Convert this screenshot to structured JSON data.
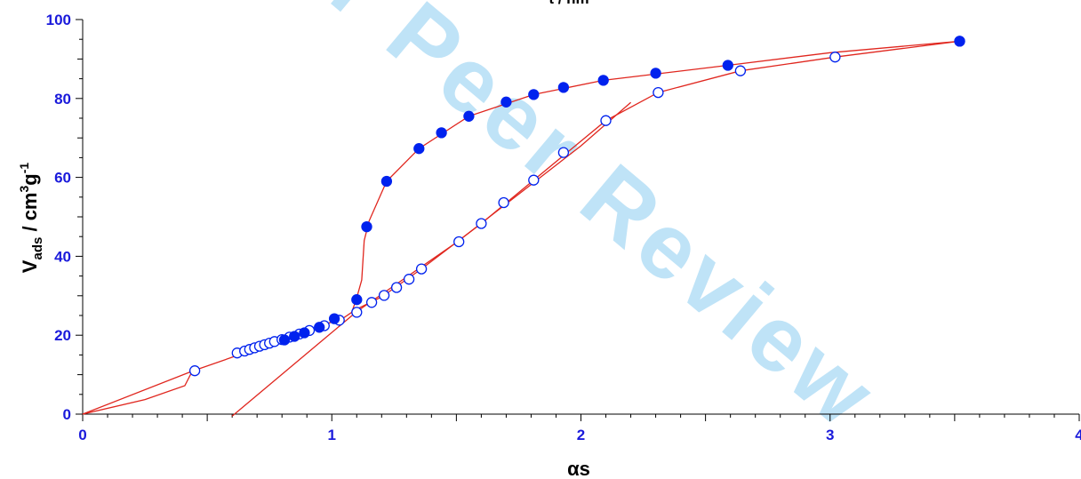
{
  "chart_data": {
    "type": "scatter",
    "title": "t / nm",
    "xlabel": "αs",
    "ylabel": "V",
    "ylabel_subscript": "ads",
    "ylabel_tail": " / cm",
    "ylabel_sup1": "3",
    "ylabel_g": "g",
    "ylabel_sup2": "-1",
    "xlim": [
      0,
      4
    ],
    "ylim": [
      0,
      100
    ],
    "x_ticks": [
      "0",
      "1",
      "2",
      "3",
      "4"
    ],
    "y_ticks": [
      "0",
      "20",
      "40",
      "60",
      "80",
      "100"
    ],
    "watermark": "For Peer Review",
    "colors": {
      "axis": "#1a1adb",
      "marker": "#0022ee",
      "fit": "#e0261e",
      "watermark": "#bfe3f7"
    },
    "series": [
      {
        "marker": "open-circle",
        "points": [
          [
            0.45,
            11
          ],
          [
            0.62,
            15.5
          ],
          [
            0.65,
            16
          ],
          [
            0.67,
            16.4
          ],
          [
            0.69,
            16.8
          ],
          [
            0.71,
            17.2
          ],
          [
            0.73,
            17.6
          ],
          [
            0.75,
            18
          ],
          [
            0.77,
            18.4
          ],
          [
            0.8,
            18.9
          ],
          [
            0.83,
            19.5
          ],
          [
            0.87,
            20.3
          ],
          [
            0.91,
            21.2
          ],
          [
            0.97,
            22.4
          ],
          [
            1.03,
            23.8
          ],
          [
            1.1,
            25.8
          ],
          [
            1.16,
            28.3
          ],
          [
            1.21,
            30.1
          ],
          [
            1.26,
            32.1
          ],
          [
            1.31,
            34.2
          ],
          [
            1.36,
            36.8
          ],
          [
            1.51,
            43.7
          ],
          [
            1.6,
            48.3
          ],
          [
            1.69,
            53.6
          ],
          [
            1.81,
            59.3
          ],
          [
            1.93,
            66.3
          ],
          [
            2.1,
            74.4
          ],
          [
            2.31,
            81.5
          ],
          [
            2.64,
            87
          ],
          [
            3.02,
            90.5
          ],
          [
            3.52,
            94.5
          ]
        ]
      },
      {
        "marker": "filled-circle",
        "points": [
          [
            0.81,
            18.8
          ],
          [
            0.85,
            19.7
          ],
          [
            0.89,
            20.6
          ],
          [
            0.95,
            22
          ],
          [
            1.01,
            24.2
          ],
          [
            1.1,
            29
          ],
          [
            1.14,
            47.5
          ],
          [
            1.22,
            59
          ],
          [
            1.35,
            67.3
          ],
          [
            1.44,
            71.3
          ],
          [
            1.55,
            75.5
          ],
          [
            1.7,
            79.1
          ],
          [
            1.81,
            81
          ],
          [
            1.93,
            82.8
          ],
          [
            2.09,
            84.6
          ],
          [
            2.3,
            86.4
          ],
          [
            2.59,
            88.4
          ],
          [
            3.52,
            94.5
          ]
        ]
      }
    ],
    "fit_lines": [
      [
        [
          0,
          0
        ],
        [
          0.25,
          3.7
        ],
        [
          0.41,
          7.2
        ],
        [
          0.44,
          10.9
        ]
      ],
      [
        [
          0,
          0
        ],
        [
          0.44,
          10.9
        ],
        [
          0.85,
          19.9
        ],
        [
          1.05,
          24.5
        ],
        [
          1.08,
          25.8
        ],
        [
          1.1,
          29.5
        ],
        [
          1.12,
          34
        ],
        [
          1.13,
          44
        ],
        [
          1.15,
          49
        ],
        [
          1.22,
          59
        ],
        [
          1.35,
          67.3
        ],
        [
          1.55,
          75.5
        ],
        [
          1.81,
          81
        ],
        [
          2.09,
          84.6
        ],
        [
          2.59,
          88.4
        ],
        [
          3.0,
          91.6
        ],
        [
          3.52,
          94.5
        ]
      ],
      [
        [
          1.08,
          26
        ],
        [
          1.2,
          29.7
        ],
        [
          1.36,
          36.8
        ],
        [
          1.6,
          48.3
        ],
        [
          1.81,
          59.3
        ],
        [
          2.1,
          74.4
        ],
        [
          2.31,
          81.5
        ],
        [
          2.64,
          87
        ],
        [
          3.02,
          90.5
        ],
        [
          3.52,
          94.5
        ]
      ],
      [
        [
          0.6,
          -0.5
        ],
        [
          1.1,
          26
        ],
        [
          1.5,
          43.5
        ],
        [
          1.8,
          58.2
        ],
        [
          2.0,
          68
        ],
        [
          2.2,
          79
        ]
      ]
    ]
  }
}
